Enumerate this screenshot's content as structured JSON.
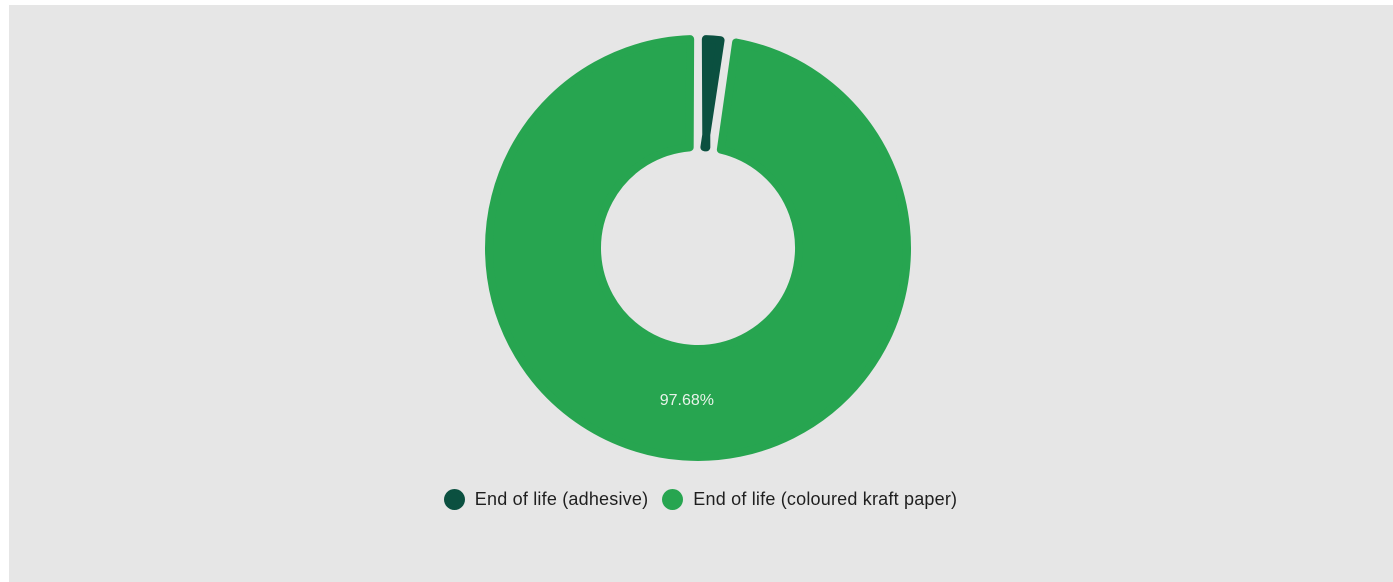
{
  "chart_data": {
    "type": "pie",
    "donut": true,
    "title": "",
    "categories": [
      "End of life (adhesive)",
      "End of life (coloured kraft paper)"
    ],
    "values": [
      2.32,
      97.68
    ],
    "colors": [
      "#0b5040",
      "#27a550"
    ],
    "data_labels": [
      "",
      "97.68%"
    ],
    "legend_position": "bottom"
  },
  "background_color": "#e6e6e6"
}
